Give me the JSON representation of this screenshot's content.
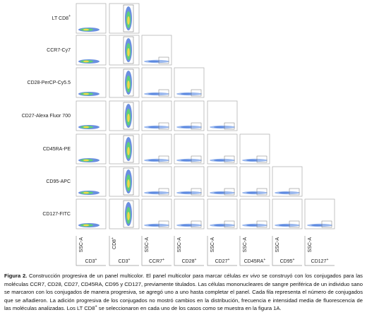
{
  "rows": [
    {
      "label": "LT CD8",
      "sup": "+"
    },
    {
      "label": "CCR7-Cy7"
    },
    {
      "label": "CD28-PerCP-Cy5.5"
    },
    {
      "label": "CD27-Alexa Fluor 700"
    },
    {
      "label": "CD45RA-PE"
    },
    {
      "label": "CD95-APC"
    },
    {
      "label": "CD127-FITC"
    }
  ],
  "columns": [
    {
      "y_axis": "SSC-A",
      "x_axis": "CD3",
      "sup": "+"
    },
    {
      "y_axis": "CD8",
      "y_sup": "+",
      "x_axis": "CD3",
      "sup": "+"
    },
    {
      "y_axis": "SSC-A",
      "x_axis": "CCR7",
      "sup": "+"
    },
    {
      "y_axis": "SSC-A",
      "x_axis": "CD28",
      "sup": "+"
    },
    {
      "y_axis": "SSC-A",
      "x_axis": "CD27",
      "sup": "+"
    },
    {
      "y_axis": "SSC-A",
      "x_axis": "CD45RA",
      "sup": "+"
    },
    {
      "y_axis": "SSC-A",
      "x_axis": "CD95",
      "sup": "+"
    },
    {
      "y_axis": "SSC-A",
      "x_axis": "CD127",
      "sup": "+"
    }
  ],
  "caption": {
    "label": "Figura 2.",
    "parts": [
      {
        "text": " Construcción progresiva de un panel multicolor. El panel multicolor para marcar células "
      },
      {
        "text": "ex vivo",
        "style": "italic"
      },
      {
        "text": " se construyó con los conjugados para las moléculas CCR7, CD28, CD27, CD45RA, CD95 y CD127, previamente titulados. Las células mononucleares de sangre periférica de un individuo sano se marcaron con los conjugados de manera progresiva, se agregó uno a uno hasta completar el panel. Cada fila representa el número de conjugados que se añadieron. La adición progresiva de los conjugados no mostró cambios en la distribución, frecuencia e intensidad media de fluorescencia de las moléculas analizadas. Los LT CD8"
      },
      {
        "text": "+",
        "style": "sup"
      },
      {
        "text": " se seleccionaron en cada uno de los casos como se muestra en la figura 1A."
      }
    ]
  }
}
